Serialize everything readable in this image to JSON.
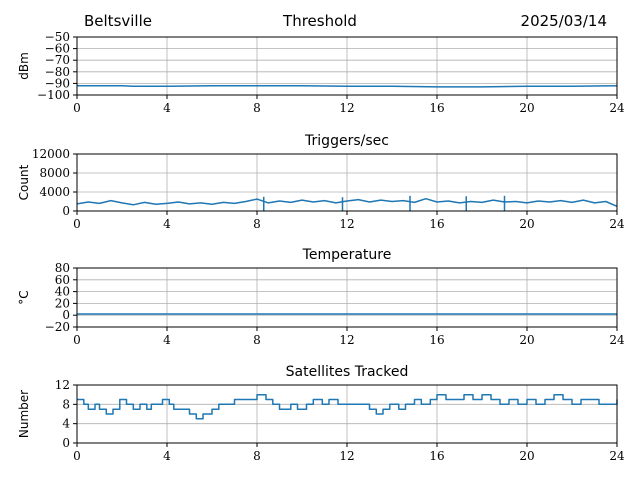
{
  "header": {
    "station": "Beltsville",
    "title": "Threshold",
    "date": "2025/03/14"
  },
  "colors": {
    "series": "#1f77b4",
    "grid": "#b0b0b0"
  },
  "chart_data": [
    {
      "type": "line",
      "title": "",
      "ylabel": "dBm",
      "xlim": [
        0,
        24
      ],
      "ylim": [
        -100,
        -50
      ],
      "xticks": [
        0,
        4,
        8,
        12,
        16,
        20,
        24
      ],
      "yticks": [
        -100,
        -90,
        -80,
        -70,
        -60,
        -50
      ],
      "grid": true,
      "x": [
        0,
        2,
        2.5,
        4,
        6,
        8,
        10,
        12,
        14,
        16,
        18,
        20,
        22,
        24
      ],
      "y": [
        -92,
        -92,
        -92.5,
        -92.5,
        -92,
        -92,
        -92,
        -92.5,
        -92.5,
        -93,
        -93,
        -92.5,
        -92.5,
        -92
      ]
    },
    {
      "type": "line",
      "title": "Triggers/sec",
      "ylabel": "Count",
      "xlim": [
        0,
        24
      ],
      "ylim": [
        0,
        12000
      ],
      "xticks": [
        0,
        4,
        8,
        12,
        16,
        20,
        24
      ],
      "yticks": [
        0,
        4000,
        8000,
        12000
      ],
      "grid": true,
      "x": [
        0,
        0.5,
        1,
        1.5,
        2,
        2.5,
        3,
        3.5,
        4,
        4.5,
        5,
        5.5,
        6,
        6.5,
        7,
        7.5,
        8,
        8.5,
        9,
        9.5,
        10,
        10.5,
        11,
        11.5,
        12,
        12.5,
        13,
        13.5,
        14,
        14.5,
        15,
        15.5,
        16,
        16.5,
        17,
        17.5,
        18,
        18.5,
        19,
        19.5,
        20,
        20.5,
        21,
        21.5,
        22,
        22.5,
        23,
        23.5,
        24
      ],
      "y": [
        1500,
        1900,
        1600,
        2200,
        1700,
        1300,
        1800,
        1400,
        1600,
        1900,
        1500,
        1700,
        1400,
        1800,
        1600,
        2000,
        2500,
        1700,
        2100,
        1800,
        2300,
        1900,
        2200,
        1700,
        2100,
        2400,
        1900,
        2300,
        2000,
        2200,
        1800,
        2600,
        1900,
        2100,
        1700,
        2000,
        1800,
        2300,
        1900,
        2000,
        1700,
        2100,
        1900,
        2200,
        1800,
        2300,
        1700,
        2000,
        1000
      ],
      "peaks": [
        {
          "x": 8.3,
          "y": 3000
        },
        {
          "x": 11.8,
          "y": 2900
        },
        {
          "x": 14.8,
          "y": 3200
        },
        {
          "x": 17.3,
          "y": 3100
        },
        {
          "x": 19.0,
          "y": 3200
        }
      ]
    },
    {
      "type": "line",
      "title": "Temperature",
      "ylabel": "°C",
      "xlim": [
        0,
        24
      ],
      "ylim": [
        -20,
        80
      ],
      "xticks": [
        0,
        4,
        8,
        12,
        16,
        20,
        24
      ],
      "yticks": [
        -20,
        0,
        20,
        40,
        60,
        80
      ],
      "grid": true,
      "x": [
        0,
        6,
        12,
        18,
        24
      ],
      "y": [
        2,
        2,
        2,
        2,
        2
      ]
    },
    {
      "type": "line",
      "title": "Satellites Tracked",
      "ylabel": "Number",
      "xlim": [
        0,
        24
      ],
      "ylim": [
        0,
        12
      ],
      "xticks": [
        0,
        4,
        8,
        12,
        16,
        20,
        24
      ],
      "yticks": [
        0,
        4,
        8,
        12
      ],
      "grid": true,
      "step": true,
      "x": [
        0,
        0.3,
        0.5,
        0.8,
        1.0,
        1.3,
        1.6,
        1.9,
        2.2,
        2.5,
        2.8,
        3.1,
        3.3,
        3.5,
        3.8,
        4.1,
        4.3,
        4.6,
        5.0,
        5.3,
        5.6,
        6.0,
        6.3,
        6.6,
        7.0,
        7.5,
        8.0,
        8.4,
        8.7,
        9.0,
        9.5,
        9.8,
        10.2,
        10.5,
        10.9,
        11.2,
        11.6,
        12.0,
        12.5,
        13.0,
        13.3,
        13.6,
        13.9,
        14.3,
        14.6,
        15.0,
        15.3,
        15.7,
        16.0,
        16.4,
        16.8,
        17.2,
        17.6,
        18.0,
        18.4,
        18.8,
        19.2,
        19.6,
        20.0,
        20.4,
        20.8,
        21.2,
        21.6,
        22.0,
        22.4,
        22.8,
        23.2,
        23.6,
        24.0
      ],
      "y": [
        9,
        8,
        7,
        8,
        7,
        6,
        7,
        9,
        8,
        7,
        8,
        7,
        8,
        8,
        9,
        8,
        7,
        7,
        6,
        5,
        6,
        7,
        8,
        8,
        9,
        9,
        10,
        9,
        8,
        7,
        8,
        7,
        8,
        9,
        8,
        9,
        8,
        8,
        8,
        7,
        6,
        7,
        8,
        7,
        8,
        9,
        8,
        9,
        10,
        9,
        9,
        10,
        9,
        10,
        9,
        8,
        9,
        8,
        9,
        8,
        9,
        10,
        9,
        8,
        9,
        9,
        8,
        8,
        9
      ]
    }
  ]
}
